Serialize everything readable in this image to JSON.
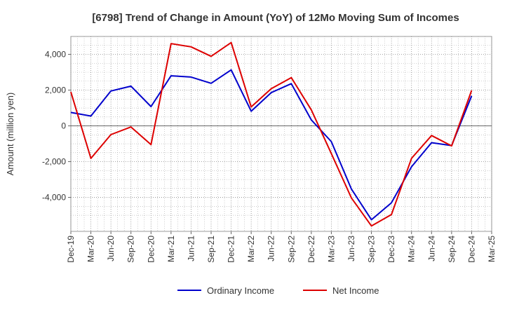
{
  "chart_data": {
    "type": "line",
    "title": "[6798]  Trend of Change in Amount (YoY) of 12Mo Moving Sum of Incomes",
    "xlabel": "",
    "ylabel": "Amount (million yen)",
    "categories": [
      "Dec-19",
      "Mar-20",
      "Jun-20",
      "Sep-20",
      "Dec-20",
      "Mar-21",
      "Jun-21",
      "Sep-21",
      "Dec-21",
      "Mar-22",
      "Jun-22",
      "Sep-22",
      "Dec-22",
      "Mar-23",
      "Jun-23",
      "Sep-23",
      "Dec-23",
      "Mar-24",
      "Jun-24",
      "Sep-24",
      "Dec-24",
      "Mar-25"
    ],
    "ylim": [
      -5900,
      5000
    ],
    "yticks": [
      -4000,
      -2000,
      0,
      2000,
      4000
    ],
    "ytick_labels": [
      "-4,000",
      "-2,000",
      "0",
      "2,000",
      "4,000"
    ],
    "grid": true,
    "legend_position": "bottom",
    "series": [
      {
        "name": "Ordinary Income",
        "color": "#0000cc",
        "values": [
          750,
          550,
          1950,
          2220,
          1080,
          2800,
          2730,
          2380,
          3130,
          820,
          1860,
          2360,
          330,
          -880,
          -3530,
          -5250,
          -4300,
          -2290,
          -940,
          -1100,
          1680,
          null
        ]
      },
      {
        "name": "Net Income",
        "color": "#dd0000",
        "values": [
          1900,
          -1820,
          -490,
          -60,
          -1050,
          4600,
          4420,
          3890,
          4660,
          1060,
          2080,
          2700,
          890,
          -1550,
          -4030,
          -5600,
          -4960,
          -1820,
          -540,
          -1120,
          1980,
          null
        ]
      }
    ]
  }
}
